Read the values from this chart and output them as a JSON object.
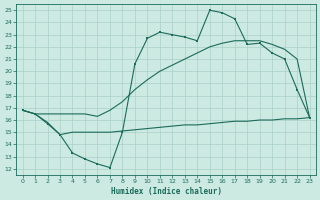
{
  "xlabel": "Humidex (Indice chaleur)",
  "xlim": [
    -0.5,
    23.5
  ],
  "ylim": [
    11.5,
    25.5
  ],
  "xticks": [
    0,
    1,
    2,
    3,
    4,
    5,
    6,
    7,
    8,
    9,
    10,
    11,
    12,
    13,
    14,
    15,
    16,
    17,
    18,
    19,
    20,
    21,
    22,
    23
  ],
  "yticks": [
    12,
    13,
    14,
    15,
    16,
    17,
    18,
    19,
    20,
    21,
    22,
    23,
    24,
    25
  ],
  "bg_color": "#cdeae2",
  "grid_color": "#aacfc7",
  "line_color": "#1a6b5a",
  "line1_x": [
    0,
    1,
    2,
    3,
    4,
    5,
    6,
    7,
    8,
    9,
    10,
    11,
    12,
    13,
    14,
    15,
    16,
    17,
    18,
    19,
    20,
    21,
    22,
    23
  ],
  "line1_y": [
    16.8,
    16.5,
    15.7,
    14.8,
    13.3,
    12.8,
    12.4,
    12.1,
    15.0,
    20.6,
    22.7,
    23.2,
    23.0,
    22.8,
    22.5,
    25.0,
    24.8,
    24.3,
    22.2,
    22.3,
    21.5,
    21.0,
    18.5,
    16.2
  ],
  "line2_x": [
    0,
    1,
    2,
    3,
    4,
    5,
    6,
    7,
    8,
    9,
    10,
    11,
    12,
    13,
    14,
    15,
    16,
    17,
    18,
    19,
    20,
    21,
    22,
    23
  ],
  "line2_y": [
    16.8,
    16.5,
    15.8,
    14.8,
    15.0,
    15.0,
    15.0,
    15.0,
    15.1,
    15.2,
    15.3,
    15.4,
    15.5,
    15.6,
    15.6,
    15.7,
    15.8,
    15.9,
    15.9,
    16.0,
    16.0,
    16.1,
    16.1,
    16.2
  ],
  "line3_x": [
    0,
    1,
    2,
    3,
    4,
    5,
    6,
    7,
    8,
    9,
    10,
    11,
    12,
    13,
    14,
    15,
    16,
    17,
    18,
    19,
    20,
    21,
    22,
    23
  ],
  "line3_y": [
    16.8,
    16.5,
    16.5,
    16.5,
    16.5,
    16.5,
    16.3,
    16.8,
    17.5,
    18.5,
    19.3,
    20.0,
    20.5,
    21.0,
    21.5,
    22.0,
    22.3,
    22.5,
    22.5,
    22.5,
    22.2,
    21.8,
    21.0,
    16.2
  ]
}
